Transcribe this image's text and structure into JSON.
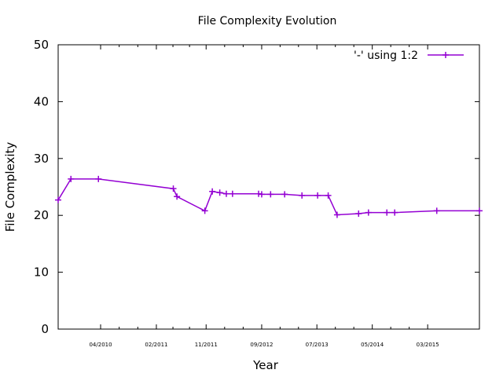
{
  "chart_data": {
    "type": "line",
    "title": "File Complexity Evolution",
    "xlabel": "Year",
    "ylabel": "File Complexity",
    "ylim": [
      0,
      50
    ],
    "yticks": [
      0,
      10,
      20,
      30,
      40,
      50
    ],
    "xlim": [
      "2009-08-11",
      "2015-12-10"
    ],
    "xticks": [
      {
        "date": "2010-04-01",
        "label": "04/2010"
      },
      {
        "date": "2011-02-01",
        "label": "02/2011"
      },
      {
        "date": "2011-11-01",
        "label": "11/2011"
      },
      {
        "date": "2012-09-01",
        "label": "09/2012"
      },
      {
        "date": "2013-07-01",
        "label": "07/2013"
      },
      {
        "date": "2014-05-01",
        "label": "05/2014"
      },
      {
        "date": "2015-03-01",
        "label": "03/2015"
      }
    ],
    "grid": false,
    "legend_position": "top-right",
    "series": [
      {
        "name": "'-' using 1:2",
        "color": "#9400d3",
        "marker": "plus",
        "points": [
          {
            "x": "2009-08-11",
            "y": 22.7
          },
          {
            "x": "2009-10-20",
            "y": 26.4
          },
          {
            "x": "2010-03-20",
            "y": 26.4
          },
          {
            "x": "2011-05-05",
            "y": 24.7
          },
          {
            "x": "2011-05-25",
            "y": 23.3
          },
          {
            "x": "2011-10-25",
            "y": 20.8
          },
          {
            "x": "2011-12-05",
            "y": 24.2
          },
          {
            "x": "2012-01-15",
            "y": 24.0
          },
          {
            "x": "2012-02-20",
            "y": 23.8
          },
          {
            "x": "2012-03-25",
            "y": 23.8
          },
          {
            "x": "2012-08-15",
            "y": 23.8
          },
          {
            "x": "2012-09-01",
            "y": 23.7
          },
          {
            "x": "2012-10-20",
            "y": 23.7
          },
          {
            "x": "2013-01-05",
            "y": 23.7
          },
          {
            "x": "2013-04-10",
            "y": 23.5
          },
          {
            "x": "2013-07-05",
            "y": 23.5
          },
          {
            "x": "2013-09-01",
            "y": 23.5
          },
          {
            "x": "2013-10-20",
            "y": 20.1
          },
          {
            "x": "2014-02-15",
            "y": 20.3
          },
          {
            "x": "2014-04-10",
            "y": 20.5
          },
          {
            "x": "2014-07-20",
            "y": 20.5
          },
          {
            "x": "2014-09-01",
            "y": 20.5
          },
          {
            "x": "2015-04-20",
            "y": 20.8
          },
          {
            "x": "2015-12-10",
            "y": 20.8
          }
        ]
      }
    ]
  }
}
